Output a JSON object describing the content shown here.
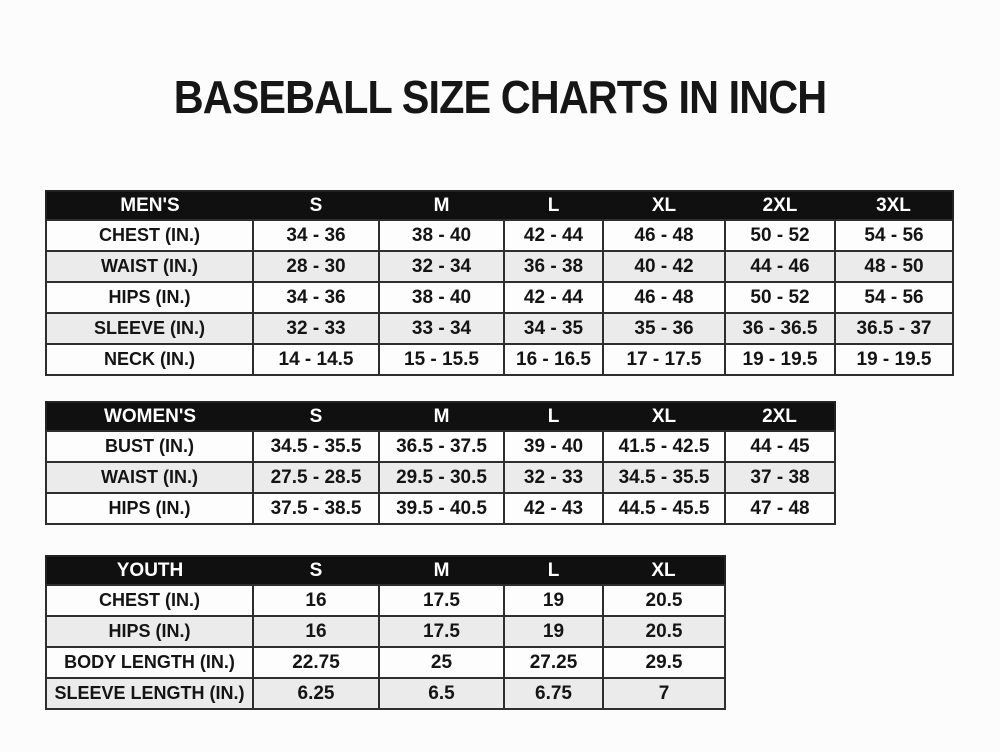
{
  "page": {
    "title": "BASEBALL SIZE CHARTS IN INCH"
  },
  "tables": [
    {
      "id": "mens",
      "header_label": "MEN'S",
      "columns": [
        "S",
        "M",
        "L",
        "XL",
        "2XL",
        "3XL"
      ],
      "rows": [
        {
          "label": "CHEST (IN.)",
          "values": [
            "34 - 36",
            "38 - 40",
            "42 - 44",
            "46 - 48",
            "50 - 52",
            "54 - 56"
          ]
        },
        {
          "label": "WAIST (IN.)",
          "values": [
            "28 - 30",
            "32 - 34",
            "36 - 38",
            "40 - 42",
            "44 - 46",
            "48 - 50"
          ]
        },
        {
          "label": "HIPS (IN.)",
          "values": [
            "34 - 36",
            "38 - 40",
            "42 - 44",
            "46 - 48",
            "50 - 52",
            "54 - 56"
          ]
        },
        {
          "label": "SLEEVE (IN.)",
          "values": [
            "32 - 33",
            "33 - 34",
            "34 - 35",
            "35 - 36",
            "36 - 36.5",
            "36.5 - 37"
          ]
        },
        {
          "label": "NECK (IN.)",
          "values": [
            "14 - 14.5",
            "15 - 15.5",
            "16 - 16.5",
            "17 - 17.5",
            "19 - 19.5",
            "19 - 19.5"
          ]
        }
      ]
    },
    {
      "id": "womens",
      "header_label": "WOMEN'S",
      "columns": [
        "S",
        "M",
        "L",
        "XL",
        "2XL"
      ],
      "rows": [
        {
          "label": "BUST (IN.)",
          "values": [
            "34.5 - 35.5",
            "36.5 - 37.5",
            "39 - 40",
            "41.5 - 42.5",
            "44 - 45"
          ]
        },
        {
          "label": "WAIST (IN.)",
          "values": [
            "27.5 - 28.5",
            "29.5 - 30.5",
            "32 - 33",
            "34.5 - 35.5",
            "37 - 38"
          ]
        },
        {
          "label": "HIPS (IN.)",
          "values": [
            "37.5 - 38.5",
            "39.5 - 40.5",
            "42 - 43",
            "44.5 - 45.5",
            "47 - 48"
          ]
        }
      ]
    },
    {
      "id": "youth",
      "header_label": "YOUTH",
      "columns": [
        "S",
        "M",
        "L",
        "XL"
      ],
      "rows": [
        {
          "label": "CHEST (IN.)",
          "values": [
            "16",
            "17.5",
            "19",
            "20.5"
          ]
        },
        {
          "label": "HIPS (IN.)",
          "values": [
            "16",
            "17.5",
            "19",
            "20.5"
          ]
        },
        {
          "label": "BODY LENGTH (IN.)",
          "values": [
            "22.75",
            "25",
            "27.25",
            "29.5"
          ]
        },
        {
          "label": "SLEEVE LENGTH (IN.)",
          "values": [
            "6.25",
            "6.5",
            "6.75",
            "7"
          ]
        }
      ]
    }
  ],
  "colors": {
    "header_bg": "#101010",
    "header_text": "#ffffff",
    "row_bg": "#fdfdfd",
    "row_alt_bg": "#ebebeb",
    "border": "#2e2e2e",
    "text": "#141414"
  }
}
